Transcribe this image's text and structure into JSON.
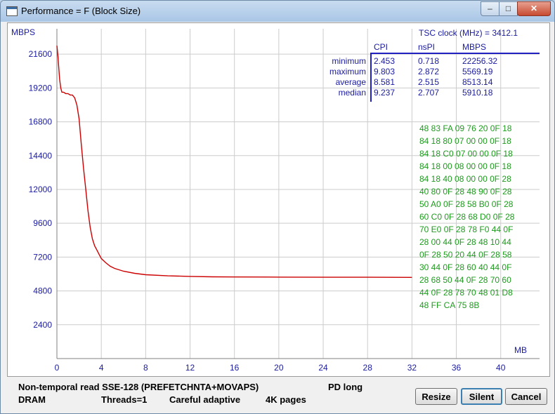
{
  "window": {
    "title": "Performance = F (Block Size)",
    "close_label": "✕",
    "min_label": "–",
    "max_label": "□"
  },
  "stats": {
    "tsc": "TSC clock (MHz)  = 3412.1",
    "headers": [
      "CPI",
      "nsPI",
      "MBPS"
    ],
    "rows": [
      {
        "label": "minimum",
        "cpi": "2.453",
        "nspi": "0.718",
        "mbps": "22256.32"
      },
      {
        "label": "maximum",
        "cpi": "9.803",
        "nspi": "2.872",
        "mbps": "5569.19"
      },
      {
        "label": "average",
        "cpi": "8.581",
        "nspi": "2.515",
        "mbps": "8513.14"
      },
      {
        "label": "median",
        "cpi": "9.237",
        "nspi": "2.707",
        "mbps": "5910.18"
      }
    ]
  },
  "hex_dump": [
    "48  83  FA  09  76  20  0F  18",
    "84  18  80  07  00  00  0F  18",
    "84  18  C0  07  00  00  0F  18",
    "84  18  00  08  00  00  0F  18",
    "84  18  40  08  00  00  0F  28",
    "40  80  0F  28  48  90  0F  28",
    "50  A0  0F  28  58  B0  0F  28",
    "60  C0  0F  28  68  D0  0F  28",
    "70  E0  0F  28  78  F0  44  0F",
    "28  00  44  0F  28  48  10  44",
    "0F  28  50  20  44  0F  28  58",
    "30  44  0F  28  60  40  44  0F",
    "28  68  50  44  0F  28  70  60",
    "44  0F  28  78  70  48  01  D8",
    "48  FF  CA  75  8B"
  ],
  "status": {
    "mode": "Non-temporal read SSE-128 (PREFETCHNTA+MOVAPS)",
    "pd": "PD long",
    "memory": "DRAM",
    "threads": "Threads=1",
    "adaptive": "Careful adaptive",
    "pages": "4K pages"
  },
  "buttons": {
    "resize": "Resize",
    "silent": "Silent",
    "cancel": "Cancel"
  },
  "colors": {
    "curve": "#cc0000",
    "axis_text": "#1a1aa0",
    "hex": "#1e9a1e",
    "grid": "#cccccc"
  },
  "chart_data": {
    "type": "line",
    "title": "",
    "xlabel": "MB",
    "ylabel": "MBPS",
    "xlim": [
      0,
      43.5
    ],
    "ylim": [
      0,
      23400
    ],
    "x_ticks": [
      0,
      4,
      8,
      12,
      16,
      20,
      24,
      28,
      32,
      36,
      40
    ],
    "y_ticks": [
      2400,
      4800,
      7200,
      9600,
      12000,
      14400,
      16800,
      19200,
      21600
    ],
    "grid": true,
    "series": [
      {
        "x": [
          0,
          0.05,
          0.1,
          0.15,
          0.25,
          0.35,
          0.45,
          0.6,
          0.8,
          1.0,
          1.2,
          1.4,
          1.6,
          1.8,
          2.0,
          2.2,
          2.4,
          2.6,
          2.8,
          3.0,
          3.2,
          3.4,
          3.6,
          3.8,
          4.0,
          4.4,
          4.8,
          5.2,
          6.0,
          7.0,
          8.0,
          10.0,
          12.0,
          14.0,
          16.0,
          20.0,
          24.0,
          28.0,
          32.0
        ],
        "y": [
          22200,
          21800,
          21400,
          20800,
          19800,
          19200,
          18900,
          18900,
          18800,
          18800,
          18700,
          18700,
          18500,
          18000,
          17000,
          15200,
          13500,
          12000,
          10500,
          9300,
          8500,
          8000,
          7700,
          7400,
          7100,
          6800,
          6550,
          6400,
          6200,
          6050,
          5950,
          5870,
          5830,
          5800,
          5790,
          5780,
          5770,
          5770,
          5760
        ]
      }
    ]
  }
}
